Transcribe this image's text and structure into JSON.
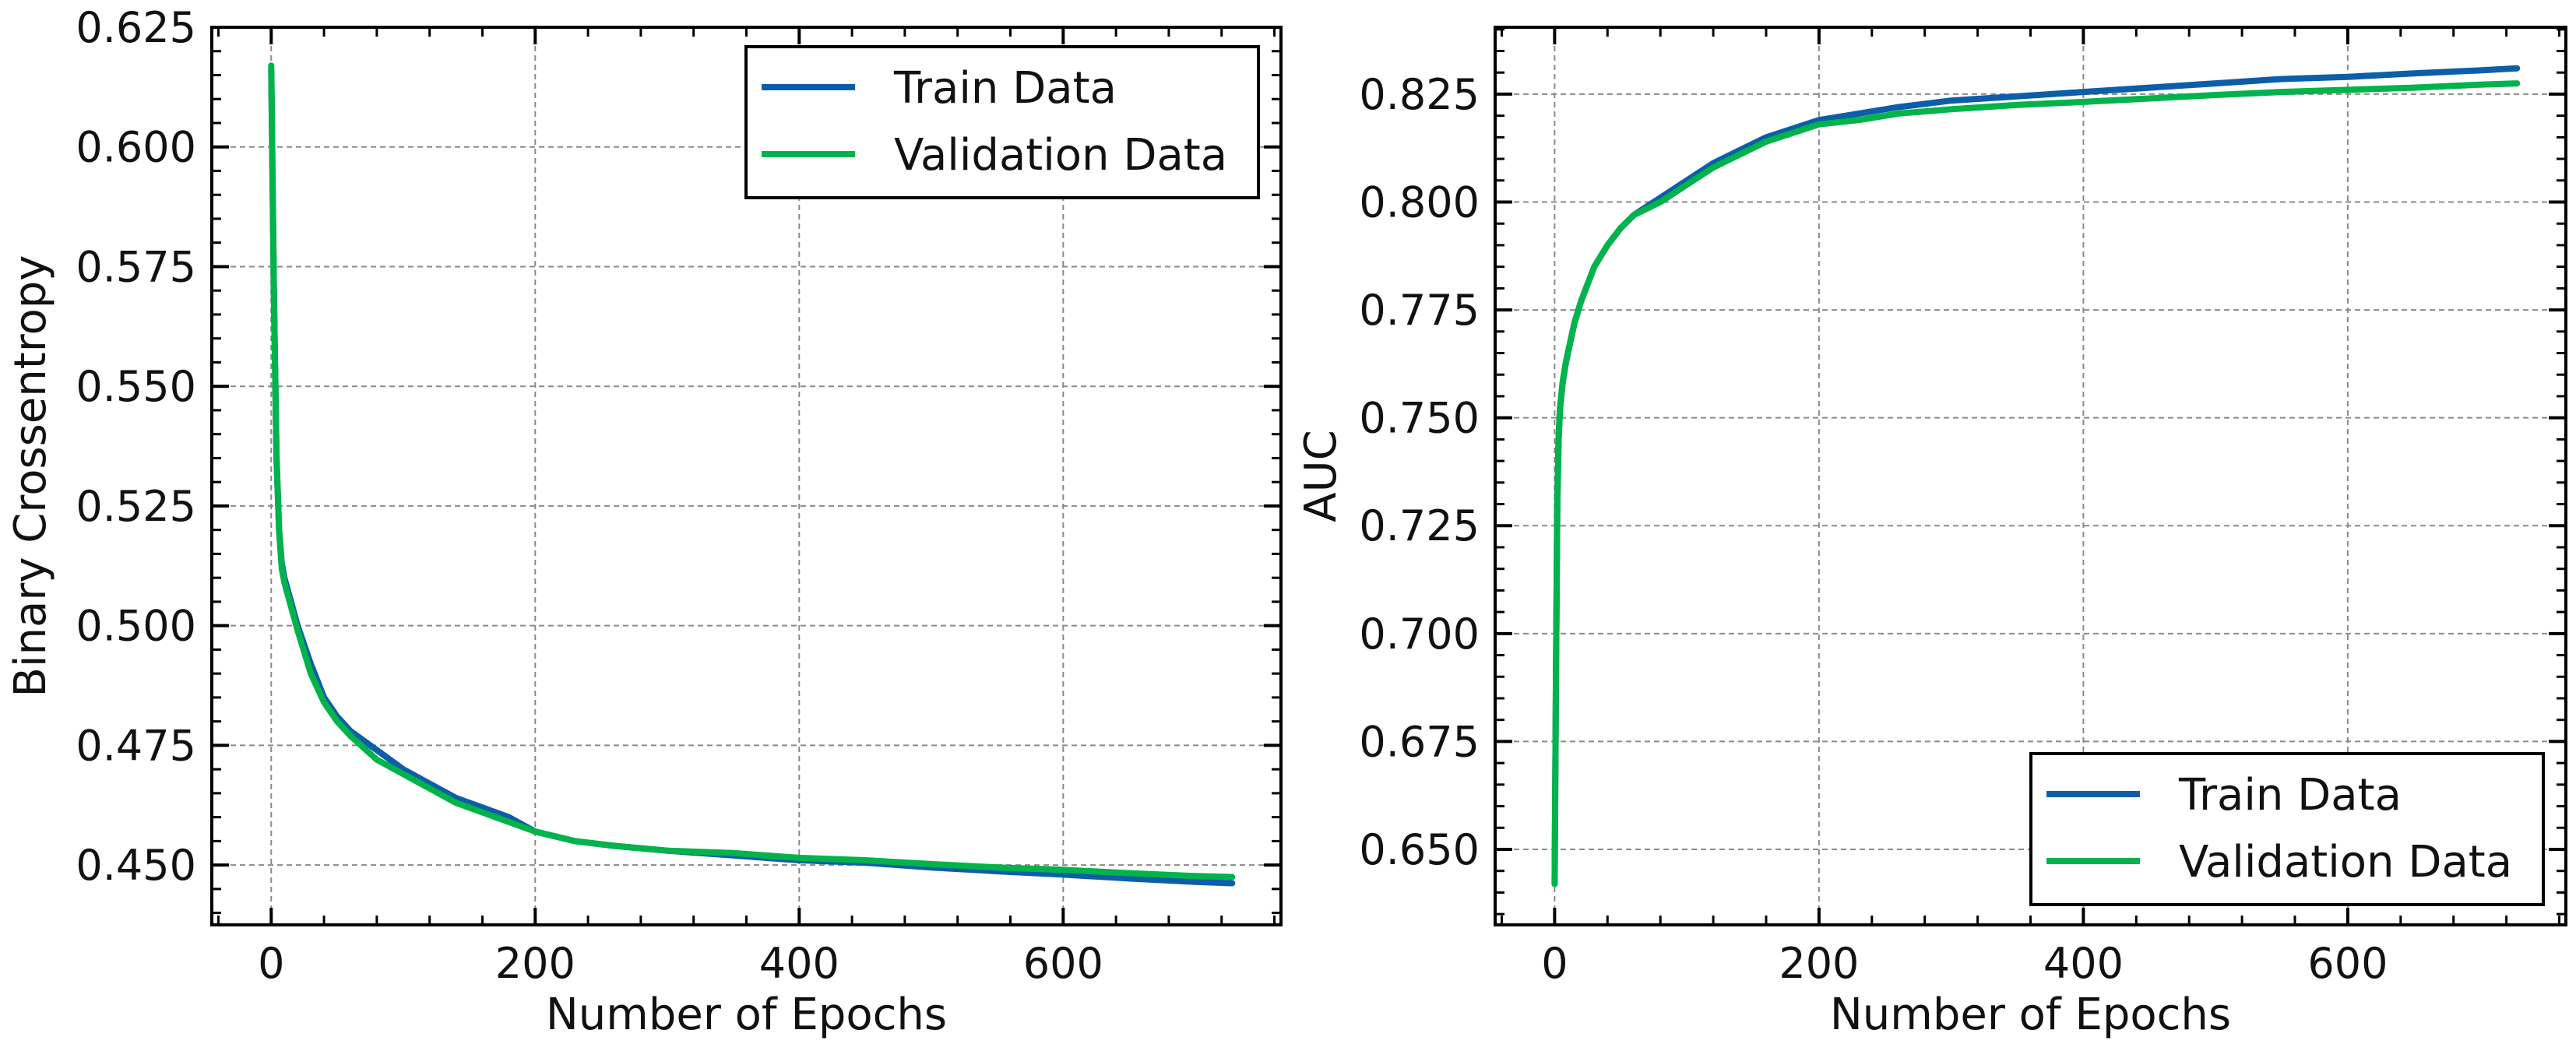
{
  "chart_data": [
    {
      "type": "line",
      "title": "",
      "xlabel": "Number of Epochs",
      "ylabel": "Binary Crossentropy",
      "xlim": [
        -45,
        765
      ],
      "ylim": [
        0.4375,
        0.625
      ],
      "xticks": [
        0,
        200,
        400,
        600
      ],
      "xtick_labels": [
        "0",
        "200",
        "400",
        "600"
      ],
      "yticks": [
        0.45,
        0.475,
        0.5,
        0.525,
        0.55,
        0.575,
        0.6,
        0.625
      ],
      "ytick_labels": [
        "0.450",
        "0.475",
        "0.500",
        "0.525",
        "0.550",
        "0.575",
        "0.600",
        "0.625"
      ],
      "grid": true,
      "legend_position": "top-right",
      "series": [
        {
          "name": "Train Data",
          "color": "#0d5ea8",
          "x": [
            0,
            2,
            4,
            6,
            8,
            10,
            15,
            20,
            30,
            40,
            50,
            60,
            80,
            100,
            120,
            140,
            160,
            180,
            200,
            230,
            260,
            300,
            350,
            400,
            450,
            500,
            550,
            600,
            650,
            700,
            728
          ],
          "y": [
            0.616,
            0.57,
            0.535,
            0.52,
            0.513,
            0.51,
            0.505,
            0.5,
            0.492,
            0.485,
            0.481,
            0.478,
            0.474,
            0.47,
            0.467,
            0.464,
            0.462,
            0.46,
            0.457,
            0.455,
            0.454,
            0.453,
            0.452,
            0.451,
            0.4505,
            0.4495,
            0.4487,
            0.448,
            0.4472,
            0.4465,
            0.4462
          ]
        },
        {
          "name": "Validation Data",
          "color": "#00b34a",
          "x": [
            0,
            2,
            4,
            6,
            8,
            10,
            15,
            20,
            30,
            40,
            50,
            60,
            80,
            100,
            120,
            140,
            160,
            180,
            200,
            230,
            260,
            300,
            350,
            400,
            450,
            500,
            550,
            600,
            650,
            700,
            728
          ],
          "y": [
            0.617,
            0.57,
            0.535,
            0.52,
            0.512,
            0.509,
            0.504,
            0.499,
            0.49,
            0.484,
            0.48,
            0.477,
            0.472,
            0.469,
            0.466,
            0.463,
            0.461,
            0.459,
            0.457,
            0.455,
            0.454,
            0.453,
            0.4525,
            0.4515,
            0.451,
            0.4502,
            0.4495,
            0.449,
            0.4483,
            0.4477,
            0.4475
          ]
        }
      ]
    },
    {
      "type": "line",
      "title": "",
      "xlabel": "Number of Epochs",
      "ylabel": "AUC",
      "xlim": [
        -45,
        765
      ],
      "ylim": [
        0.6325,
        0.8405
      ],
      "xticks": [
        0,
        200,
        400,
        600
      ],
      "xtick_labels": [
        "0",
        "200",
        "400",
        "600"
      ],
      "yticks": [
        0.65,
        0.675,
        0.7,
        0.725,
        0.75,
        0.775,
        0.8,
        0.825
      ],
      "ytick_labels": [
        "0.650",
        "0.675",
        "0.700",
        "0.725",
        "0.750",
        "0.775",
        "0.800",
        "0.825"
      ],
      "grid": true,
      "legend_position": "bottom-right",
      "series": [
        {
          "name": "Train Data",
          "color": "#0d5ea8",
          "x": [
            0,
            1,
            2,
            3,
            4,
            6,
            8,
            10,
            15,
            20,
            30,
            40,
            50,
            60,
            80,
            100,
            120,
            140,
            160,
            180,
            200,
            230,
            260,
            300,
            350,
            400,
            450,
            500,
            550,
            600,
            650,
            700,
            728
          ],
          "y": [
            0.642,
            0.69,
            0.73,
            0.745,
            0.752,
            0.758,
            0.762,
            0.765,
            0.772,
            0.777,
            0.785,
            0.79,
            0.794,
            0.797,
            0.801,
            0.805,
            0.809,
            0.812,
            0.815,
            0.817,
            0.819,
            0.8205,
            0.822,
            0.8235,
            0.8245,
            0.8255,
            0.8265,
            0.8275,
            0.8285,
            0.829,
            0.8298,
            0.8305,
            0.831
          ]
        },
        {
          "name": "Validation Data",
          "color": "#00b34a",
          "x": [
            0,
            1,
            2,
            3,
            4,
            6,
            8,
            10,
            15,
            20,
            30,
            40,
            50,
            60,
            80,
            100,
            120,
            140,
            160,
            180,
            200,
            230,
            260,
            300,
            350,
            400,
            450,
            500,
            550,
            600,
            650,
            700,
            728
          ],
          "y": [
            0.642,
            0.69,
            0.73,
            0.745,
            0.752,
            0.758,
            0.762,
            0.765,
            0.772,
            0.777,
            0.785,
            0.79,
            0.794,
            0.797,
            0.8,
            0.804,
            0.808,
            0.811,
            0.814,
            0.816,
            0.818,
            0.819,
            0.8205,
            0.8215,
            0.8225,
            0.8232,
            0.824,
            0.8248,
            0.8255,
            0.826,
            0.8265,
            0.8272,
            0.8275
          ]
        }
      ]
    }
  ]
}
